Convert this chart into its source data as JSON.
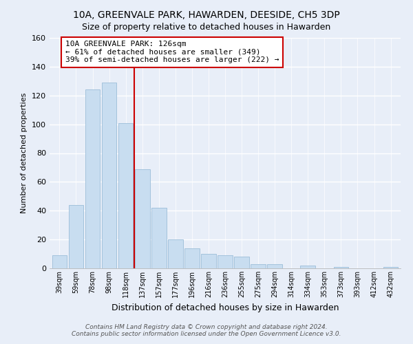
{
  "title": "10A, GREENVALE PARK, HAWARDEN, DEESIDE, CH5 3DP",
  "subtitle": "Size of property relative to detached houses in Hawarden",
  "xlabel": "Distribution of detached houses by size in Hawarden",
  "ylabel": "Number of detached properties",
  "bar_labels": [
    "39sqm",
    "59sqm",
    "78sqm",
    "98sqm",
    "118sqm",
    "137sqm",
    "157sqm",
    "177sqm",
    "196sqm",
    "216sqm",
    "236sqm",
    "255sqm",
    "275sqm",
    "294sqm",
    "314sqm",
    "334sqm",
    "353sqm",
    "373sqm",
    "393sqm",
    "412sqm",
    "432sqm"
  ],
  "bar_values": [
    9,
    44,
    124,
    129,
    101,
    69,
    42,
    20,
    14,
    10,
    9,
    8,
    3,
    3,
    0,
    2,
    0,
    1,
    0,
    0,
    1
  ],
  "bar_color": "#c8ddf0",
  "bar_edge_color": "#9bbdd8",
  "vline_x_index": 4,
  "vline_color": "#cc0000",
  "annotation_text": "10A GREENVALE PARK: 126sqm\n← 61% of detached houses are smaller (349)\n39% of semi-detached houses are larger (222) →",
  "annotation_box_facecolor": "#ffffff",
  "annotation_box_edgecolor": "#cc0000",
  "ylim": [
    0,
    160
  ],
  "yticks": [
    0,
    20,
    40,
    60,
    80,
    100,
    120,
    140,
    160
  ],
  "footer_line1": "Contains HM Land Registry data © Crown copyright and database right 2024.",
  "footer_line2": "Contains public sector information licensed under the Open Government Licence v3.0.",
  "bg_color": "#e8eef8",
  "plot_bg_color": "#e8eef8",
  "grid_color": "#ffffff",
  "title_fontsize": 10,
  "subtitle_fontsize": 9
}
